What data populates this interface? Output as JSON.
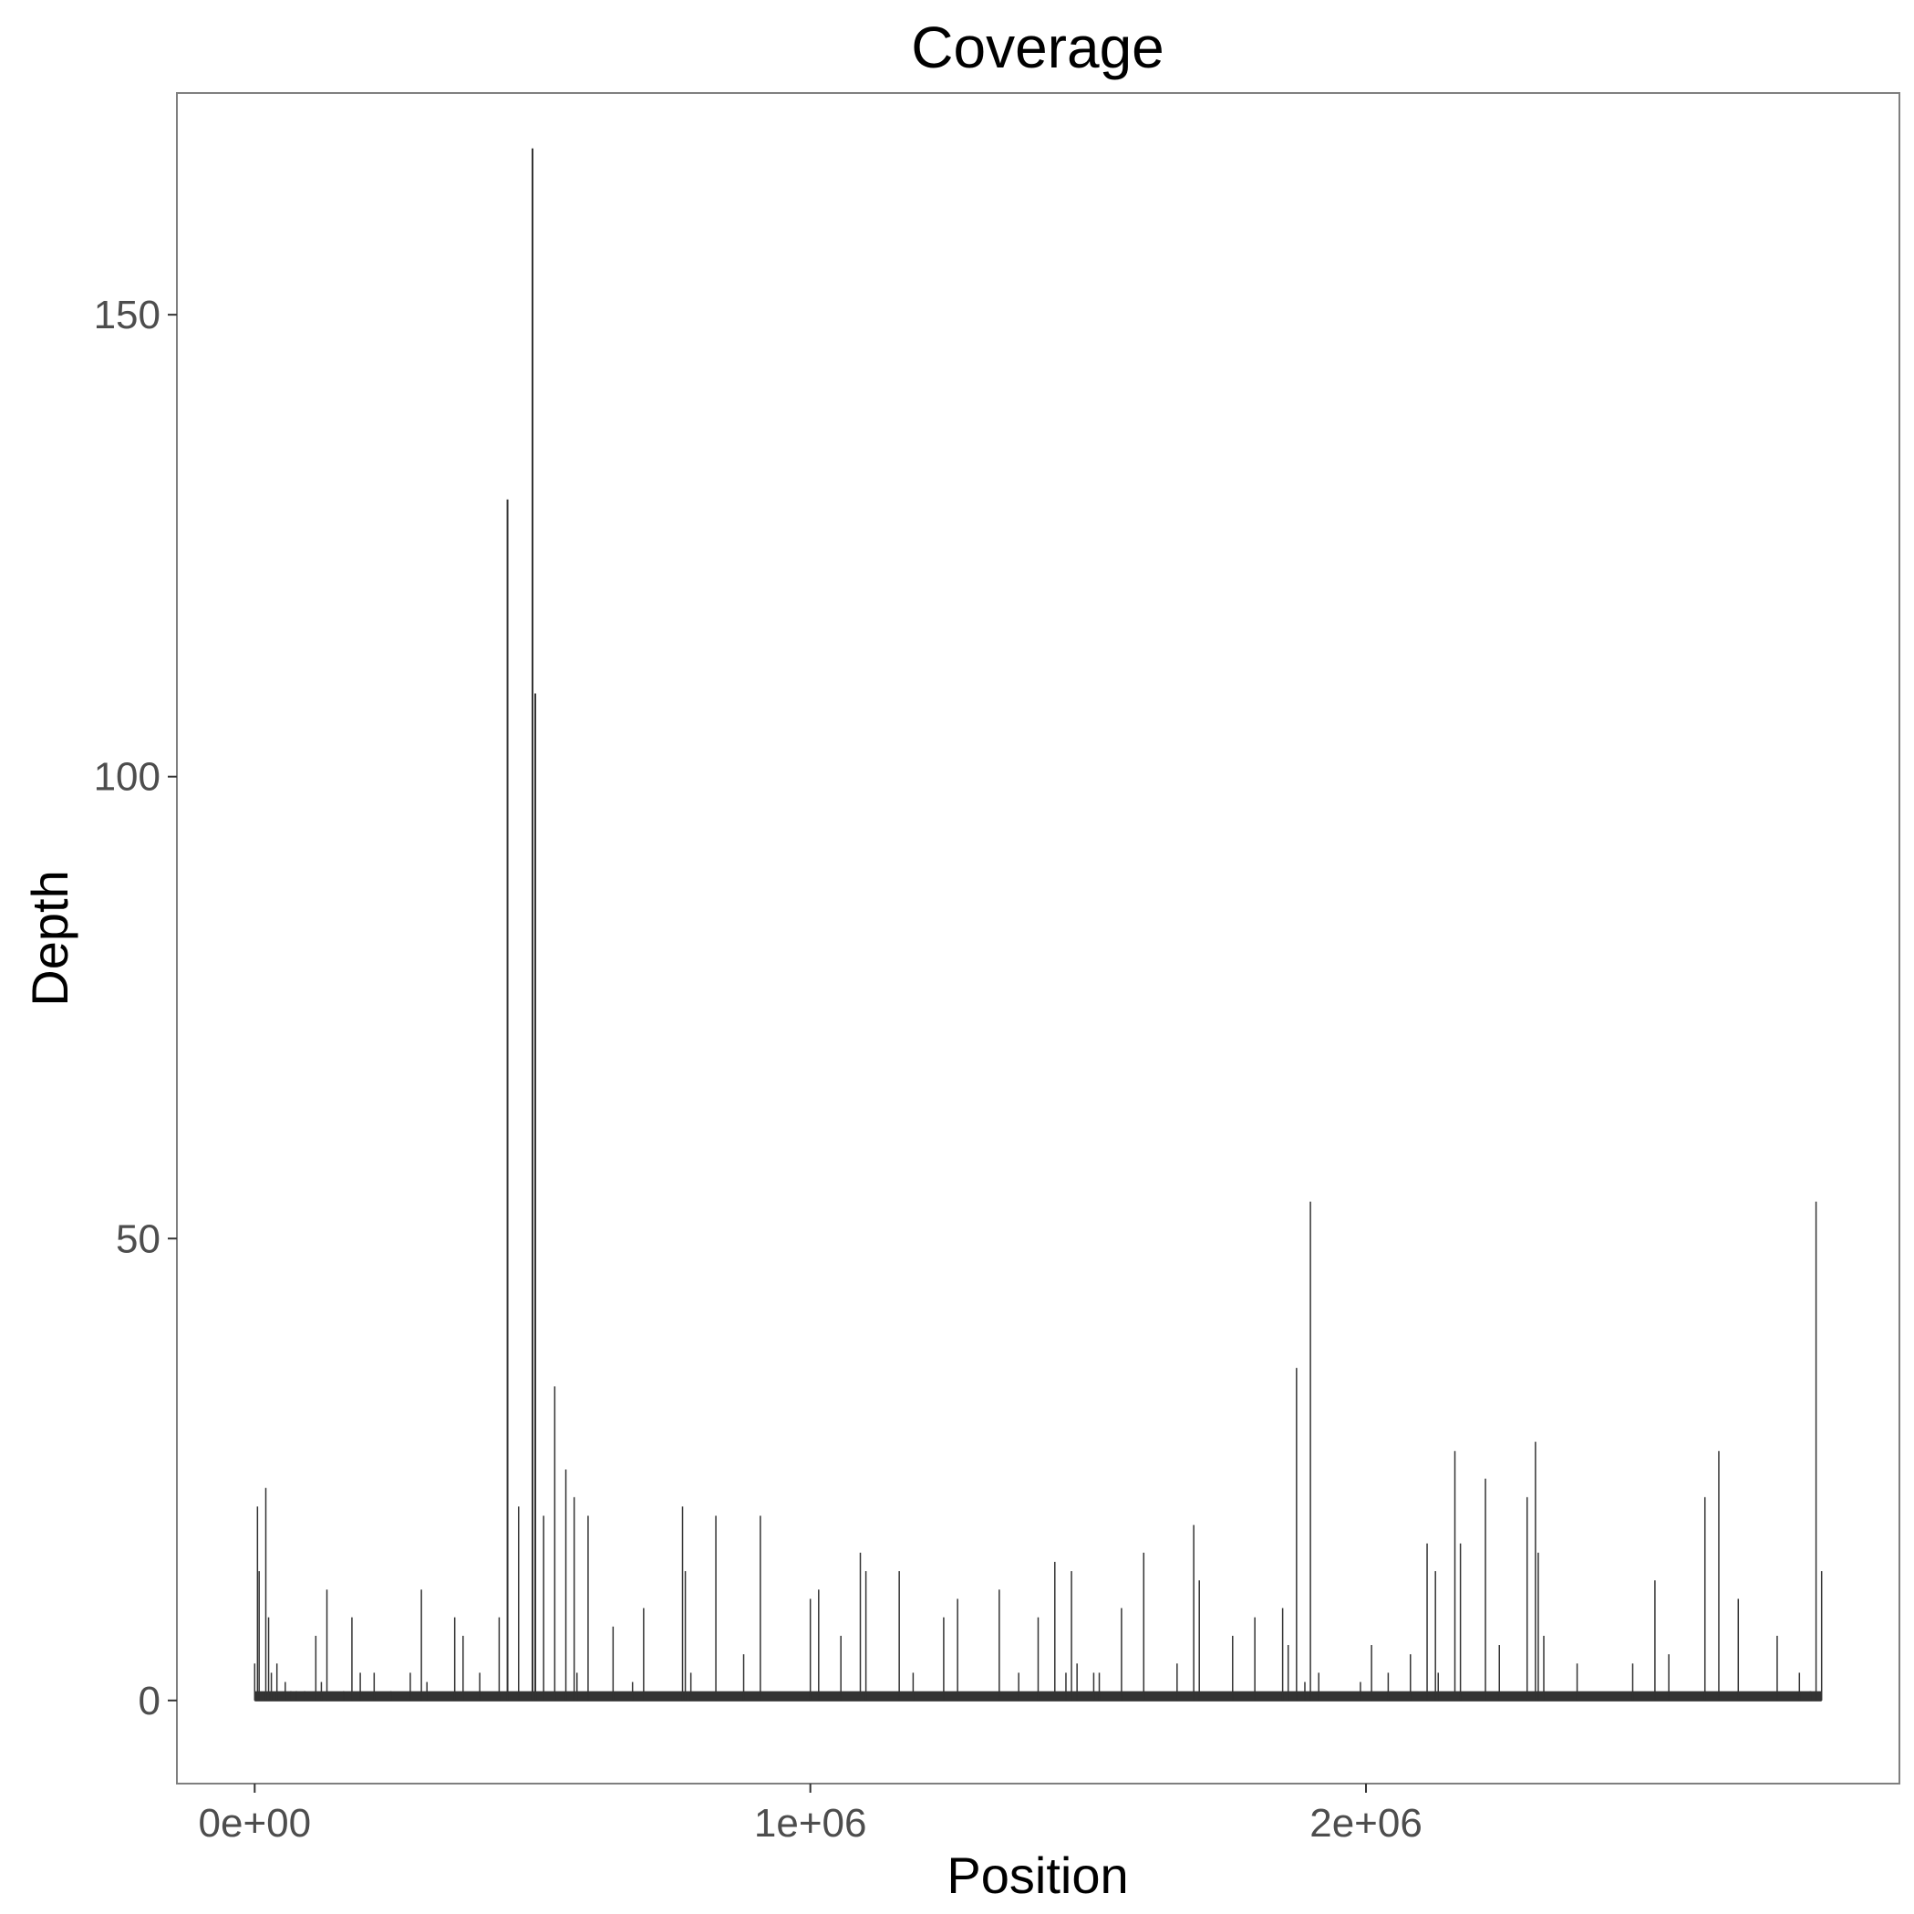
{
  "colors": {
    "background": "#ffffff",
    "panel_border": "#7f7f7f",
    "gridline": "#ebebeb",
    "tick": "#333333",
    "tick_label": "#4d4d4d",
    "series": "#333333"
  },
  "chart_data": {
    "type": "area",
    "title": "Coverage",
    "xlabel": "Position",
    "ylabel": "Depth",
    "xlim": [
      -140000,
      2960000
    ],
    "ylim": [
      -9,
      174
    ],
    "x_ticks": [
      0,
      1000000,
      2000000
    ],
    "x_tick_labels": [
      "0e+00",
      "1e+06",
      "2e+06"
    ],
    "y_ticks": [
      0,
      50,
      100,
      150
    ],
    "y_tick_labels": [
      "0",
      "50",
      "100",
      "150"
    ],
    "grid": false,
    "legend": "none",
    "series": [
      {
        "x": [
          0,
          5000,
          8000,
          20000,
          25000,
          30000,
          40000,
          55000,
          65000,
          75000,
          90000,
          110000,
          120000,
          130000,
          160000,
          175000,
          190000,
          215000,
          245000,
          280000,
          300000,
          310000,
          360000,
          375000,
          405000,
          440000,
          455000,
          475000,
          500000,
          505000,
          520000,
          540000,
          560000,
          575000,
          580000,
          600000,
          645000,
          680000,
          700000,
          770000,
          775000,
          785000,
          830000,
          880000,
          910000,
          1000000,
          1015000,
          1055000,
          1090000,
          1100000,
          1160000,
          1185000,
          1240000,
          1265000,
          1340000,
          1375000,
          1410000,
          1440000,
          1460000,
          1470000,
          1480000,
          1510000,
          1520000,
          1560000,
          1600000,
          1660000,
          1690000,
          1700000,
          1760000,
          1800000,
          1850000,
          1860000,
          1875000,
          1890000,
          1900000,
          1915000,
          1990000,
          2010000,
          2040000,
          2080000,
          2110000,
          2125000,
          2130000,
          2160000,
          2170000,
          2215000,
          2240000,
          2290000,
          2305000,
          2310000,
          2320000,
          2380000,
          2480000,
          2520000,
          2545000,
          2610000,
          2635000,
          2670000,
          2740000,
          2780000,
          2800000,
          2810000,
          2820000
        ],
        "y": [
          4,
          21,
          14,
          23,
          9,
          3,
          4,
          2,
          1,
          1,
          1,
          7,
          2,
          12,
          1,
          9,
          3,
          3,
          1,
          3,
          12,
          2,
          9,
          7,
          3,
          9,
          130,
          21,
          168,
          109,
          20,
          34,
          25,
          22,
          3,
          20,
          8,
          2,
          10,
          21,
          14,
          3,
          20,
          5,
          20,
          11,
          12,
          7,
          16,
          14,
          14,
          3,
          9,
          11,
          12,
          3,
          9,
          15,
          3,
          14,
          4,
          3,
          3,
          10,
          16,
          4,
          19,
          13,
          7,
          9,
          10,
          6,
          36,
          2,
          54,
          3,
          2,
          6,
          3,
          5,
          17,
          14,
          3,
          27,
          17,
          24,
          6,
          22,
          28,
          16,
          7,
          4,
          4,
          13,
          5,
          22,
          27,
          11,
          7,
          3,
          1,
          54,
          14
        ]
      }
    ]
  }
}
